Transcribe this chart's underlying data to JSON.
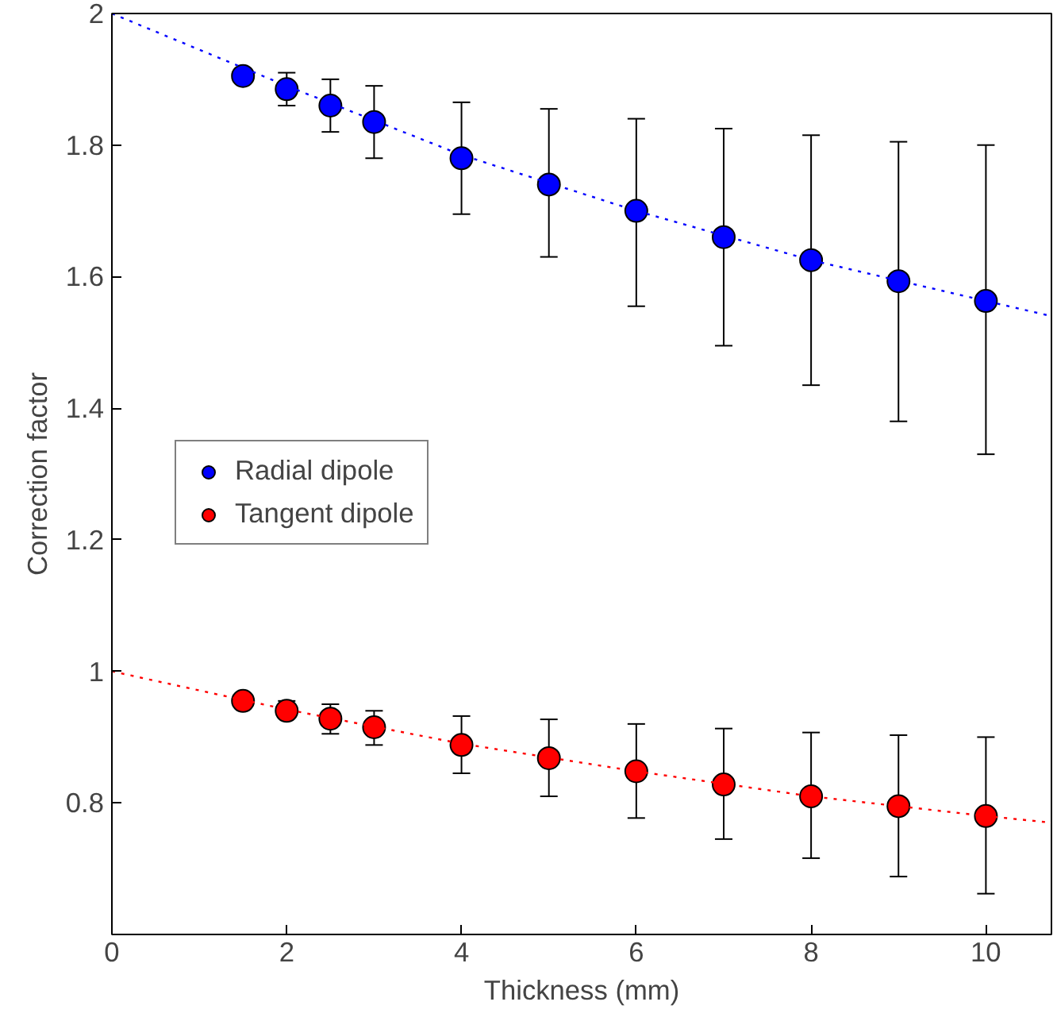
{
  "chart_data": {
    "type": "scatter",
    "xlabel": "Thickness (mm)",
    "ylabel": "Correction factor",
    "xlim": [
      0,
      10.75
    ],
    "ylim": [
      0.6,
      2
    ],
    "xticks": [
      0,
      2,
      4,
      6,
      8,
      10
    ],
    "yticks": [
      0.8,
      1,
      1.2,
      1.4,
      1.6,
      1.8,
      2
    ],
    "grid": false,
    "legend": "left",
    "marker": "circle",
    "series": [
      {
        "name": "Radial dipole",
        "color": "#0000ff",
        "x": [
          1.5,
          2,
          2.5,
          3,
          4,
          5,
          6,
          7,
          8,
          9,
          10
        ],
        "values": [
          1.905,
          1.885,
          1.86,
          1.835,
          1.78,
          1.74,
          1.7,
          1.66,
          1.625,
          1.593,
          1.563
        ],
        "errors": [
          null,
          [
            1.86,
            1.91
          ],
          [
            1.82,
            1.9
          ],
          [
            1.78,
            1.89
          ],
          [
            1.695,
            1.865
          ],
          [
            1.63,
            1.855
          ],
          [
            1.555,
            1.84
          ],
          [
            1.495,
            1.825
          ],
          [
            1.435,
            1.815
          ],
          [
            1.38,
            1.805
          ],
          [
            1.33,
            1.8
          ]
        ]
      },
      {
        "name": "Tangent dipole",
        "color": "#ff0000",
        "x": [
          1.5,
          2,
          2.5,
          3,
          4,
          5,
          6,
          7,
          8,
          9,
          10
        ],
        "values": [
          0.955,
          0.94,
          0.928,
          0.915,
          0.888,
          0.868,
          0.848,
          0.828,
          0.81,
          0.795,
          0.78
        ],
        "errors": [
          null,
          [
            0.93,
            0.955
          ],
          [
            0.905,
            0.95
          ],
          [
            0.888,
            0.94
          ],
          [
            0.845,
            0.932
          ],
          [
            0.81,
            0.927
          ],
          [
            0.777,
            0.92
          ],
          [
            0.745,
            0.913
          ],
          [
            0.716,
            0.907
          ],
          [
            0.688,
            0.903
          ],
          [
            0.662,
            0.9
          ]
        ]
      },
      {
        "type": "line",
        "color": "#0000ff",
        "line_style": "dotted",
        "marker": "none",
        "x": [
          0,
          2,
          4,
          6,
          8,
          10,
          10.75
        ],
        "values": [
          2.0,
          1.89,
          1.785,
          1.7,
          1.625,
          1.563,
          1.54
        ]
      },
      {
        "type": "line",
        "color": "#ff0000",
        "line_style": "dotted",
        "marker": "none",
        "x": [
          0,
          2,
          4,
          6,
          8,
          10,
          10.75
        ],
        "values": [
          1.0,
          0.942,
          0.89,
          0.848,
          0.81,
          0.78,
          0.77
        ]
      }
    ]
  }
}
